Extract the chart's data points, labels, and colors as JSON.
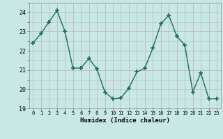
{
  "x": [
    0,
    1,
    2,
    3,
    4,
    5,
    6,
    7,
    8,
    9,
    10,
    11,
    12,
    13,
    14,
    15,
    16,
    17,
    18,
    19,
    20,
    21,
    22,
    23
  ],
  "y": [
    22.4,
    22.9,
    23.5,
    24.1,
    23.0,
    21.1,
    21.1,
    21.6,
    21.05,
    19.85,
    19.5,
    19.55,
    20.05,
    20.9,
    21.1,
    22.15,
    23.4,
    23.85,
    22.75,
    22.3,
    19.85,
    20.85,
    19.5,
    19.5
  ],
  "line_color": "#1a6b5a",
  "bg_color": "#c8e8e5",
  "grid_color": "#c0b8c0",
  "xlabel": "Humidex (Indice chaleur)",
  "ylim": [
    19,
    24.5
  ],
  "yticks": [
    19,
    20,
    21,
    22,
    23,
    24
  ],
  "xlim": [
    -0.5,
    23.5
  ],
  "marker": "+",
  "markersize": 5,
  "linewidth": 1.0
}
